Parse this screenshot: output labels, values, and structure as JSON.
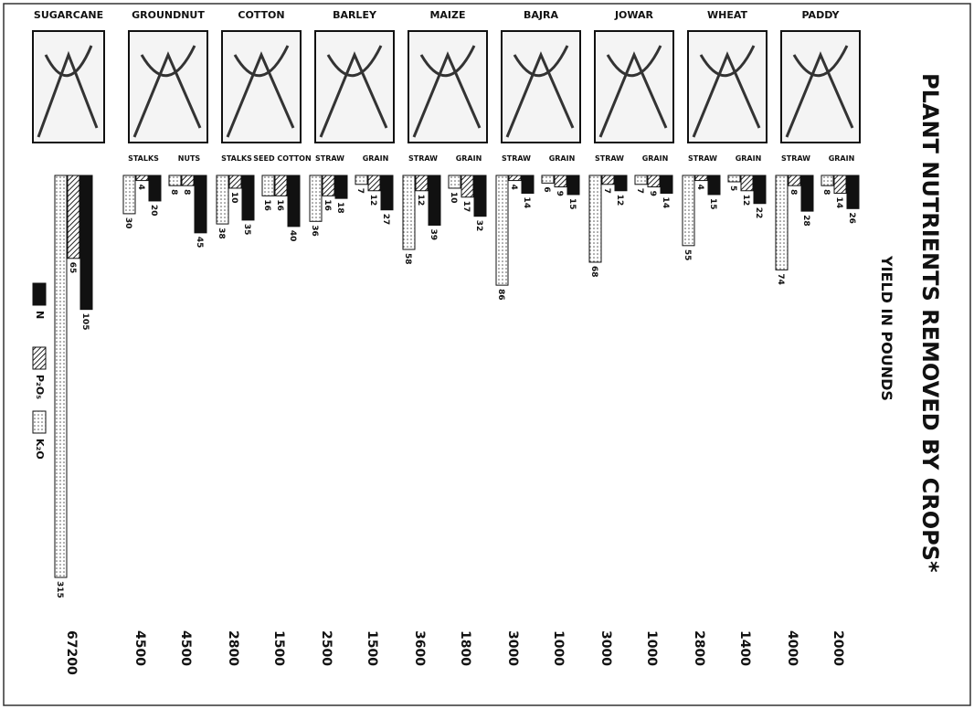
{
  "chart_data": {
    "type": "grouped-bar",
    "title": "PLANT NUTRIENTS REMOVED BY CROPS*",
    "subtitle": "YIELD IN POUNDS",
    "crops": [
      {
        "name": "SUGARCANE",
        "parts": [
          {
            "label": null,
            "yield": 67200
          }
        ]
      },
      {
        "name": "GROUNDNUT",
        "parts": [
          {
            "label": "STALKS",
            "yield": 4500
          },
          {
            "label": "NUTS",
            "yield": 4500
          }
        ]
      },
      {
        "name": "COTTON",
        "parts": [
          {
            "label": "STALKS",
            "yield": 2800
          },
          {
            "label": "SEED COTTON",
            "yield": 1500
          }
        ]
      },
      {
        "name": "BARLEY",
        "parts": [
          {
            "label": "STRAW",
            "yield": 2500
          },
          {
            "label": "GRAIN",
            "yield": 1500
          }
        ]
      },
      {
        "name": "MAIZE",
        "parts": [
          {
            "label": "STRAW",
            "yield": 3600
          },
          {
            "label": "GRAIN",
            "yield": 1800
          }
        ]
      },
      {
        "name": "BAJRA",
        "parts": [
          {
            "label": "STRAW",
            "yield": 3000
          },
          {
            "label": "GRAIN",
            "yield": 1000
          }
        ]
      },
      {
        "name": "JOWAR",
        "parts": [
          {
            "label": "STRAW",
            "yield": 3000
          },
          {
            "label": "GRAIN",
            "yield": 1000
          }
        ]
      },
      {
        "name": "WHEAT",
        "parts": [
          {
            "label": "STRAW",
            "yield": 2800
          },
          {
            "label": "GRAIN",
            "yield": 1400
          }
        ]
      },
      {
        "name": "PADDY",
        "parts": [
          {
            "label": "STRAW",
            "yield": 4000
          },
          {
            "label": "GRAIN",
            "yield": 2000
          }
        ]
      }
    ],
    "series": [
      {
        "name": "K₂O",
        "color": "#ffffff",
        "values": [
          315,
          30,
          8,
          38,
          16,
          36,
          7,
          58,
          10,
          86,
          6,
          68,
          7,
          55,
          5,
          74,
          8
        ]
      },
      {
        "name": "P₂O₅",
        "color": "#bbbbbb",
        "values": [
          65,
          4,
          8,
          10,
          16,
          16,
          12,
          12,
          17,
          4,
          9,
          7,
          9,
          4,
          12,
          8,
          14
        ]
      },
      {
        "name": "N",
        "color": "#111111",
        "values": [
          105,
          20,
          45,
          35,
          40,
          18,
          27,
          39,
          32,
          14,
          15,
          12,
          14,
          15,
          22,
          28,
          26
        ]
      }
    ]
  }
}
